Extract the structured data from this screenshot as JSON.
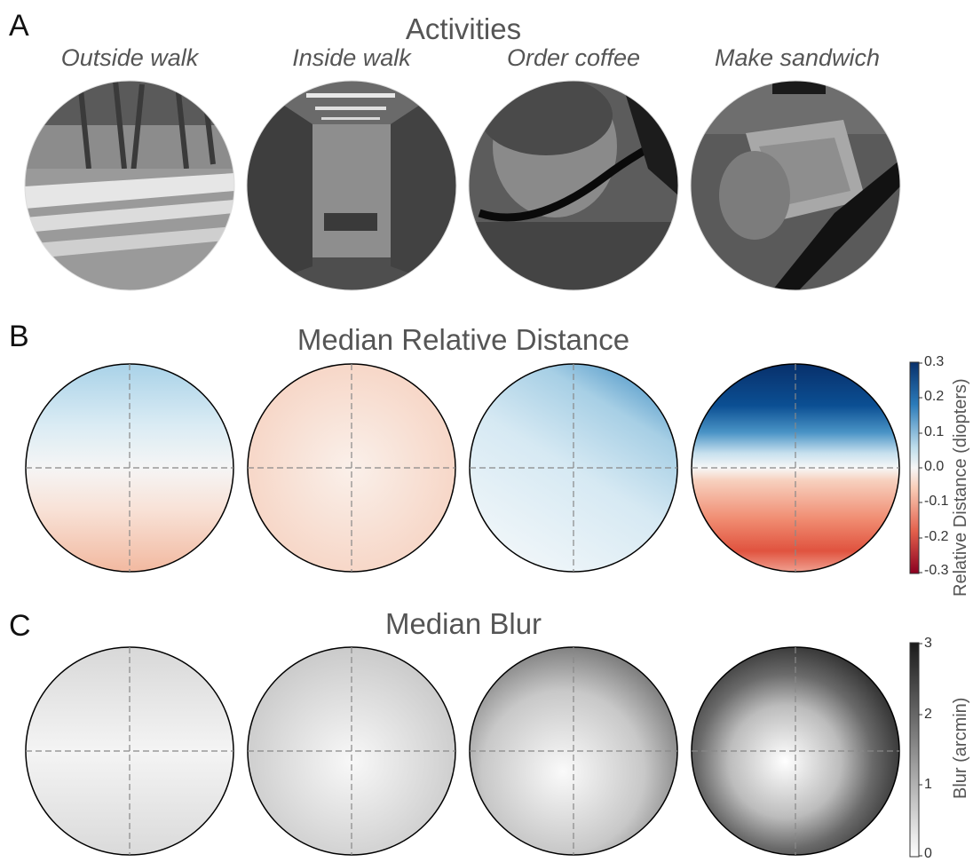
{
  "panels": {
    "a": {
      "letter": "A",
      "title": "Activities"
    },
    "b": {
      "letter": "B",
      "title": "Median Relative Distance"
    },
    "c": {
      "letter": "C",
      "title": "Median Blur"
    }
  },
  "activities": [
    "Outside walk",
    "Inside walk",
    "Order coffee",
    "Make sandwich"
  ],
  "distance_colorbar": {
    "label": "Relative Distance (diopters)",
    "ticks": [
      "0.3",
      "0.2",
      "0.1",
      "0.0",
      "-0.1",
      "-0.2",
      "-0.3"
    ],
    "range": [
      -0.3,
      0.3
    ],
    "colors": {
      "positive": "#08306b",
      "zero": "#f7f7f7",
      "negative": "#8b0020"
    }
  },
  "blur_colorbar": {
    "label": "Blur (arcmin)",
    "ticks": [
      "3",
      "2",
      "1",
      "0"
    ],
    "range": [
      0,
      3
    ],
    "colors": {
      "high": "#1a1a1a",
      "low": "#ffffff"
    }
  }
}
